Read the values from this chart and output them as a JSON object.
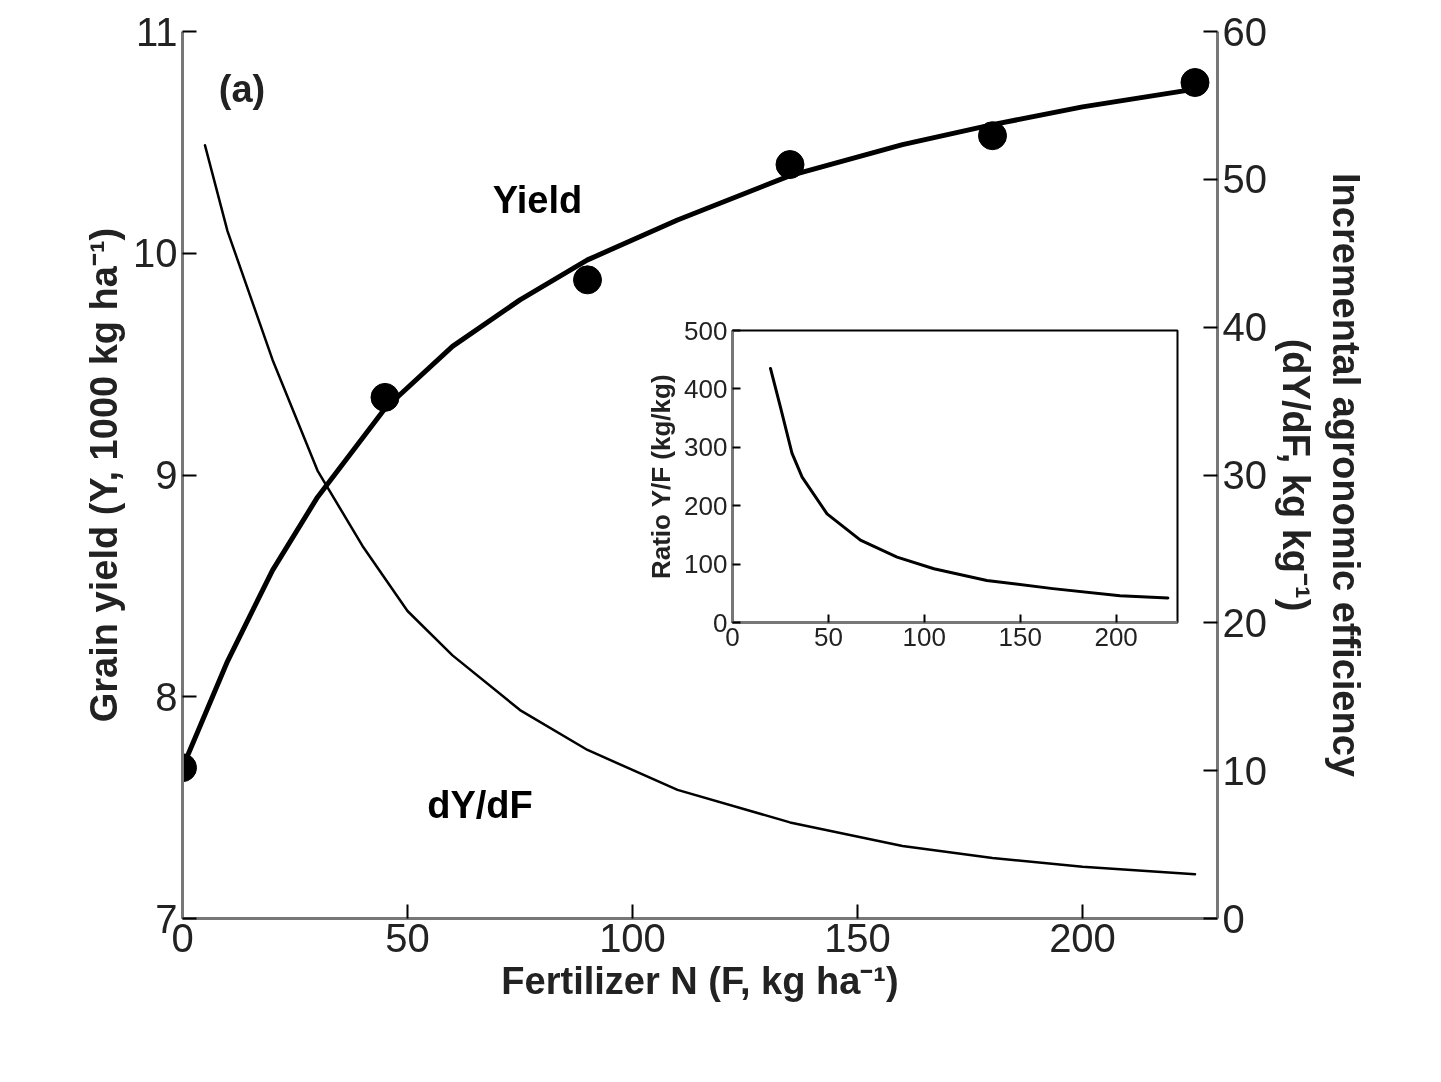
{
  "chart_data": [
    {
      "type": "line",
      "xlabel": "Fertilizer N (F, kg ha⁻¹)",
      "ylabel": "Grain yield (Y, 1000 kg ha⁻¹)",
      "y2label": "Incremental agronomic efficiency\n(dY/dF, kg kg⁻¹)",
      "annotations": [
        "(a)"
      ],
      "xlim": [
        0,
        230
      ],
      "xticks": [
        0,
        50,
        100,
        150,
        200
      ],
      "ylim": [
        7,
        11
      ],
      "yticks": [
        7,
        8,
        9,
        10,
        11
      ],
      "y2lim": [
        0,
        60
      ],
      "y2ticks": [
        0,
        10,
        20,
        30,
        40,
        50,
        60
      ],
      "series": [
        {
          "type": "scatter",
          "marker": "circle",
          "color": "#000000",
          "x": [
            0,
            45,
            90,
            135,
            180,
            225
          ],
          "values": [
            7.68,
            9.35,
            9.88,
            10.4,
            10.53,
            10.77
          ]
        },
        {
          "name": "Yield",
          "color": "#000000",
          "x": [
            0,
            10,
            20,
            30,
            45,
            60,
            75,
            90,
            110,
            135,
            160,
            180,
            200,
            225
          ],
          "values": [
            7.68,
            8.16,
            8.57,
            8.9,
            9.3,
            9.58,
            9.79,
            9.97,
            10.15,
            10.35,
            10.49,
            10.58,
            10.66,
            10.74
          ]
        },
        {
          "name": "dY/dF",
          "axis": "y2",
          "color": "#000000",
          "x": [
            5,
            10,
            20,
            30,
            40,
            50,
            60,
            75,
            90,
            110,
            135,
            160,
            180,
            200,
            225
          ],
          "values": [
            52.3,
            46.5,
            37.8,
            30.3,
            25.2,
            20.8,
            17.8,
            14.1,
            11.4,
            8.7,
            6.5,
            4.9,
            4.1,
            3.5,
            3.0
          ]
        }
      ]
    },
    {
      "type": "line",
      "ylabel": "Ratio Y/F (kg/kg)",
      "xlim": [
        0,
        232
      ],
      "xticks": [
        0,
        50,
        100,
        150,
        200
      ],
      "ylim": [
        0,
        500
      ],
      "yticks": [
        0,
        100,
        200,
        300,
        400,
        500
      ],
      "series": [
        {
          "color": "#000000",
          "x": [
            19.8,
            25,
            31,
            36.3,
            49.3,
            66.7,
            85.8,
            105,
            132.6,
            167,
            202,
            227
          ],
          "values": [
            435,
            369,
            290,
            249,
            186,
            141,
            112,
            92,
            72,
            58,
            46,
            42
          ]
        }
      ]
    }
  ]
}
